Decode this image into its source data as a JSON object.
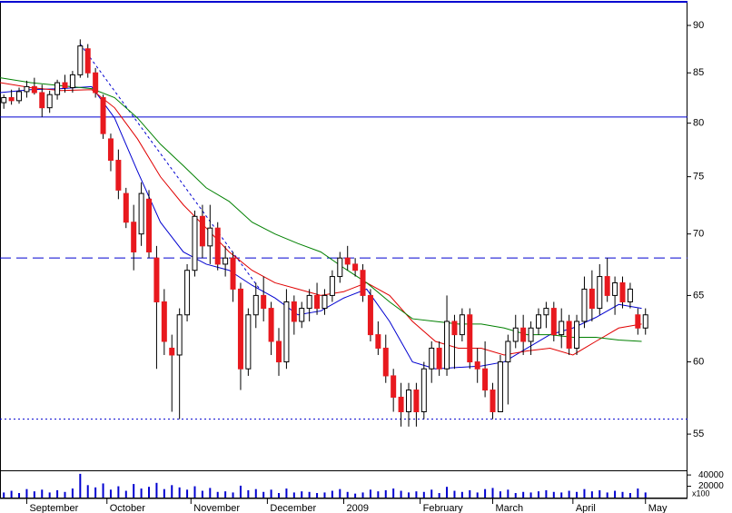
{
  "chart_data": {
    "type": "candlestick",
    "ylog": true,
    "ylim": [
      52.65,
      92.8
    ],
    "yticks": [
      55,
      60,
      65,
      70,
      75,
      80,
      85,
      90
    ],
    "xlim": [
      0,
      180
    ],
    "xticks": [
      {
        "value": 7,
        "label": "September"
      },
      {
        "value": 28,
        "label": "October"
      },
      {
        "value": 50,
        "label": "November"
      },
      {
        "value": 70,
        "label": "December"
      },
      {
        "value": 90,
        "label": "2009"
      },
      {
        "value": 110,
        "label": "February"
      },
      {
        "value": 129,
        "label": "March"
      },
      {
        "value": 150,
        "label": "April"
      },
      {
        "value": 169,
        "label": "May"
      }
    ],
    "up_color": "#ffffff",
    "down_color": "#e8191e",
    "x": [
      1,
      3,
      5,
      7,
      9,
      11,
      13,
      15,
      17,
      19,
      21,
      23,
      25,
      27,
      29,
      31,
      33,
      35,
      37,
      39,
      41,
      43,
      45,
      47,
      49,
      51,
      53,
      55,
      57,
      59,
      61,
      63,
      65,
      67,
      69,
      71,
      73,
      75,
      77,
      79,
      81,
      83,
      85,
      87,
      89,
      91,
      93,
      95,
      97,
      99,
      101,
      103,
      105,
      107,
      109,
      111,
      113,
      115,
      117,
      119,
      121,
      123,
      125,
      127,
      129,
      131,
      133,
      135,
      137,
      139,
      141,
      143,
      145,
      147,
      149,
      151,
      153,
      155,
      157,
      159,
      161,
      163,
      165,
      167,
      169
    ],
    "ohlc": [
      [
        82.0,
        82.8,
        81.4,
        82.5
      ],
      [
        82.5,
        83.3,
        81.8,
        82.2
      ],
      [
        82.2,
        83.5,
        81.9,
        83.1
      ],
      [
        83.1,
        84.2,
        82.5,
        83.6
      ],
      [
        83.6,
        84.5,
        82.8,
        83.0
      ],
      [
        83.0,
        83.8,
        80.6,
        81.5
      ],
      [
        81.5,
        83.2,
        81.0,
        82.8
      ],
      [
        82.8,
        84.3,
        82.3,
        84.0
      ],
      [
        84.0,
        84.8,
        83.0,
        83.5
      ],
      [
        83.5,
        85.2,
        83.0,
        84.8
      ],
      [
        84.8,
        88.5,
        84.5,
        87.8
      ],
      [
        87.5,
        88.0,
        84.5,
        85.0
      ],
      [
        85.0,
        85.5,
        82.5,
        83.0
      ],
      [
        82.5,
        82.8,
        78.5,
        79.0
      ],
      [
        78.5,
        79.0,
        75.5,
        76.5
      ],
      [
        76.5,
        77.5,
        73.0,
        73.8
      ],
      [
        73.5,
        74.0,
        70.5,
        71.0
      ],
      [
        71.0,
        72.5,
        67.0,
        68.5
      ],
      [
        70.0,
        74.5,
        69.0,
        73.5
      ],
      [
        73.0,
        73.8,
        68.0,
        68.5
      ],
      [
        68.0,
        69.0,
        59.5,
        64.5
      ],
      [
        64.5,
        65.5,
        60.5,
        61.5
      ],
      [
        61.0,
        62.0,
        56.5,
        60.5
      ],
      [
        60.5,
        64.0,
        56.0,
        63.5
      ],
      [
        63.5,
        67.5,
        63.0,
        67.0
      ],
      [
        67.0,
        72.0,
        66.5,
        71.5
      ],
      [
        71.5,
        72.5,
        68.0,
        69.0
      ],
      [
        69.0,
        72.5,
        67.5,
        70.5
      ],
      [
        70.5,
        71.0,
        67.0,
        67.5
      ],
      [
        67.5,
        69.0,
        66.5,
        68.0
      ],
      [
        68.0,
        68.5,
        64.5,
        65.5
      ],
      [
        65.5,
        66.0,
        58.0,
        59.5
      ],
      [
        59.5,
        64.0,
        59.0,
        63.5
      ],
      [
        63.5,
        66.0,
        62.5,
        65.0
      ],
      [
        65.0,
        66.5,
        63.0,
        64.0
      ],
      [
        64.0,
        64.5,
        60.5,
        61.5
      ],
      [
        61.5,
        62.5,
        59.0,
        60.0
      ],
      [
        60.0,
        65.5,
        59.5,
        64.5
      ],
      [
        64.5,
        65.0,
        62.0,
        63.0
      ],
      [
        63.0,
        64.5,
        62.5,
        64.0
      ],
      [
        64.0,
        65.5,
        63.0,
        65.0
      ],
      [
        65.0,
        66.0,
        63.5,
        64.0
      ],
      [
        64.0,
        65.5,
        63.5,
        65.0
      ],
      [
        65.0,
        67.0,
        64.5,
        66.5
      ],
      [
        66.5,
        68.5,
        66.0,
        68.0
      ],
      [
        68.0,
        69.0,
        67.0,
        67.5
      ],
      [
        67.5,
        68.0,
        66.5,
        67.0
      ],
      [
        67.0,
        67.5,
        64.5,
        65.0
      ],
      [
        65.0,
        65.5,
        61.5,
        62.0
      ],
      [
        62.0,
        63.0,
        60.5,
        61.0
      ],
      [
        61.0,
        62.0,
        58.5,
        59.0
      ],
      [
        59.0,
        59.5,
        56.5,
        57.5
      ],
      [
        57.5,
        58.5,
        55.5,
        56.5
      ],
      [
        56.5,
        58.5,
        55.5,
        58.0
      ],
      [
        58.0,
        58.5,
        55.5,
        56.5
      ],
      [
        56.5,
        60.0,
        56.0,
        59.5
      ],
      [
        59.5,
        61.5,
        58.5,
        61.0
      ],
      [
        61.0,
        61.5,
        59.0,
        59.5
      ],
      [
        59.5,
        65.0,
        59.0,
        63.0
      ],
      [
        63.0,
        63.5,
        59.5,
        62.0
      ],
      [
        62.0,
        64.0,
        61.5,
        63.5
      ],
      [
        63.5,
        64.0,
        59.5,
        60.0
      ],
      [
        60.0,
        61.0,
        58.5,
        59.5
      ],
      [
        59.5,
        61.5,
        57.5,
        58.0
      ],
      [
        58.0,
        58.5,
        56.0,
        56.5
      ],
      [
        56.5,
        60.5,
        56.5,
        60.0
      ],
      [
        60.0,
        62.0,
        57.0,
        61.5
      ],
      [
        61.5,
        63.5,
        61.0,
        62.5
      ],
      [
        62.5,
        63.5,
        60.5,
        61.5
      ],
      [
        61.5,
        63.0,
        60.5,
        62.5
      ],
      [
        62.5,
        64.0,
        62.0,
        63.5
      ],
      [
        63.5,
        64.5,
        62.5,
        64.0
      ],
      [
        64.0,
        64.5,
        61.5,
        62.0
      ],
      [
        62.0,
        64.0,
        61.0,
        63.0
      ],
      [
        63.0,
        63.5,
        60.5,
        61.0
      ],
      [
        61.0,
        63.5,
        60.5,
        63.0
      ],
      [
        63.0,
        66.5,
        62.5,
        65.5
      ],
      [
        65.5,
        67.0,
        63.0,
        64.0
      ],
      [
        64.0,
        67.5,
        63.5,
        66.5
      ],
      [
        66.5,
        68.0,
        64.5,
        65.0
      ],
      [
        65.0,
        66.5,
        63.5,
        66.0
      ],
      [
        66.0,
        66.5,
        64.0,
        64.5
      ],
      [
        64.5,
        66.0,
        64.0,
        65.5
      ],
      [
        63.5,
        64.0,
        62.0,
        62.5
      ],
      [
        62.5,
        64.0,
        62.0,
        63.5
      ]
    ],
    "moving_averages": {
      "x": [
        0,
        8,
        16,
        24,
        30,
        36,
        42,
        48,
        54,
        60,
        66,
        72,
        78,
        84,
        90,
        96,
        102,
        108,
        114,
        120,
        126,
        132,
        138,
        144,
        150,
        156,
        162,
        168
      ],
      "series": [
        {
          "color": "#0000d0",
          "values": [
            83.0,
            83.3,
            83.4,
            83.6,
            80.5,
            75.5,
            71.0,
            68.5,
            67.5,
            67.0,
            65.8,
            64.8,
            63.5,
            63.8,
            64.8,
            65.5,
            63.0,
            60.0,
            59.5,
            59.6,
            59.7,
            60.0,
            61.0,
            62.0,
            62.5,
            63.3,
            64.3,
            64.0
          ]
        },
        {
          "color": "#e00000",
          "values": [
            84.0,
            83.5,
            83.2,
            83.3,
            81.5,
            78.5,
            75.0,
            72.5,
            70.5,
            68.5,
            67.0,
            66.0,
            65.5,
            65.0,
            65.3,
            66.0,
            65.0,
            63.0,
            61.5,
            61.0,
            61.0,
            60.5,
            60.8,
            61.0,
            60.5,
            61.5,
            62.5,
            62.8
          ]
        },
        {
          "color": "#008000",
          "values": [
            84.5,
            84.0,
            83.7,
            83.4,
            82.5,
            80.5,
            78.0,
            76.0,
            74.0,
            72.8,
            71.0,
            70.0,
            69.2,
            68.5,
            67.2,
            66.0,
            64.5,
            63.2,
            63.0,
            62.8,
            62.8,
            62.5,
            62.0,
            62.0,
            61.8,
            61.8,
            61.6,
            61.5
          ]
        }
      ]
    },
    "trendline": {
      "color": "#0000d0",
      "x": [
        21,
        68
      ],
      "values": [
        88,
        65.5
      ]
    },
    "hlines": [
      {
        "value": 80.6,
        "style": "solid"
      },
      {
        "value": 68,
        "style": "dashed"
      },
      {
        "value": 56,
        "style": "dotted"
      }
    ],
    "hline_color": "#0000d0",
    "volume": {
      "color": "#0000d0",
      "ylim": [
        0,
        45000
      ],
      "yticks": [
        20000,
        40000
      ],
      "unit_label": "x100",
      "values": [
        9000,
        12000,
        8000,
        15000,
        11000,
        14000,
        9000,
        13000,
        10000,
        16000,
        42000,
        22000,
        18000,
        25000,
        14000,
        20000,
        12000,
        24000,
        16000,
        19000,
        26000,
        15000,
        22000,
        18000,
        14000,
        20000,
        12000,
        17000,
        10000,
        11000,
        9000,
        21000,
        13000,
        15000,
        10000,
        14000,
        8000,
        16000,
        9000,
        11000,
        10000,
        8000,
        9000,
        12000,
        15000,
        10000,
        7000,
        9000,
        14000,
        11000,
        13000,
        16000,
        12000,
        9000,
        11000,
        10000,
        14000,
        8000,
        19000,
        12000,
        10000,
        13000,
        9000,
        15000,
        17000,
        11000,
        14000,
        8000,
        10000,
        9000,
        11000,
        13000,
        10000,
        9000,
        12000,
        10000,
        15000,
        11000,
        13000,
        9000,
        12000,
        10000,
        8000,
        16000,
        9000
      ]
    }
  }
}
